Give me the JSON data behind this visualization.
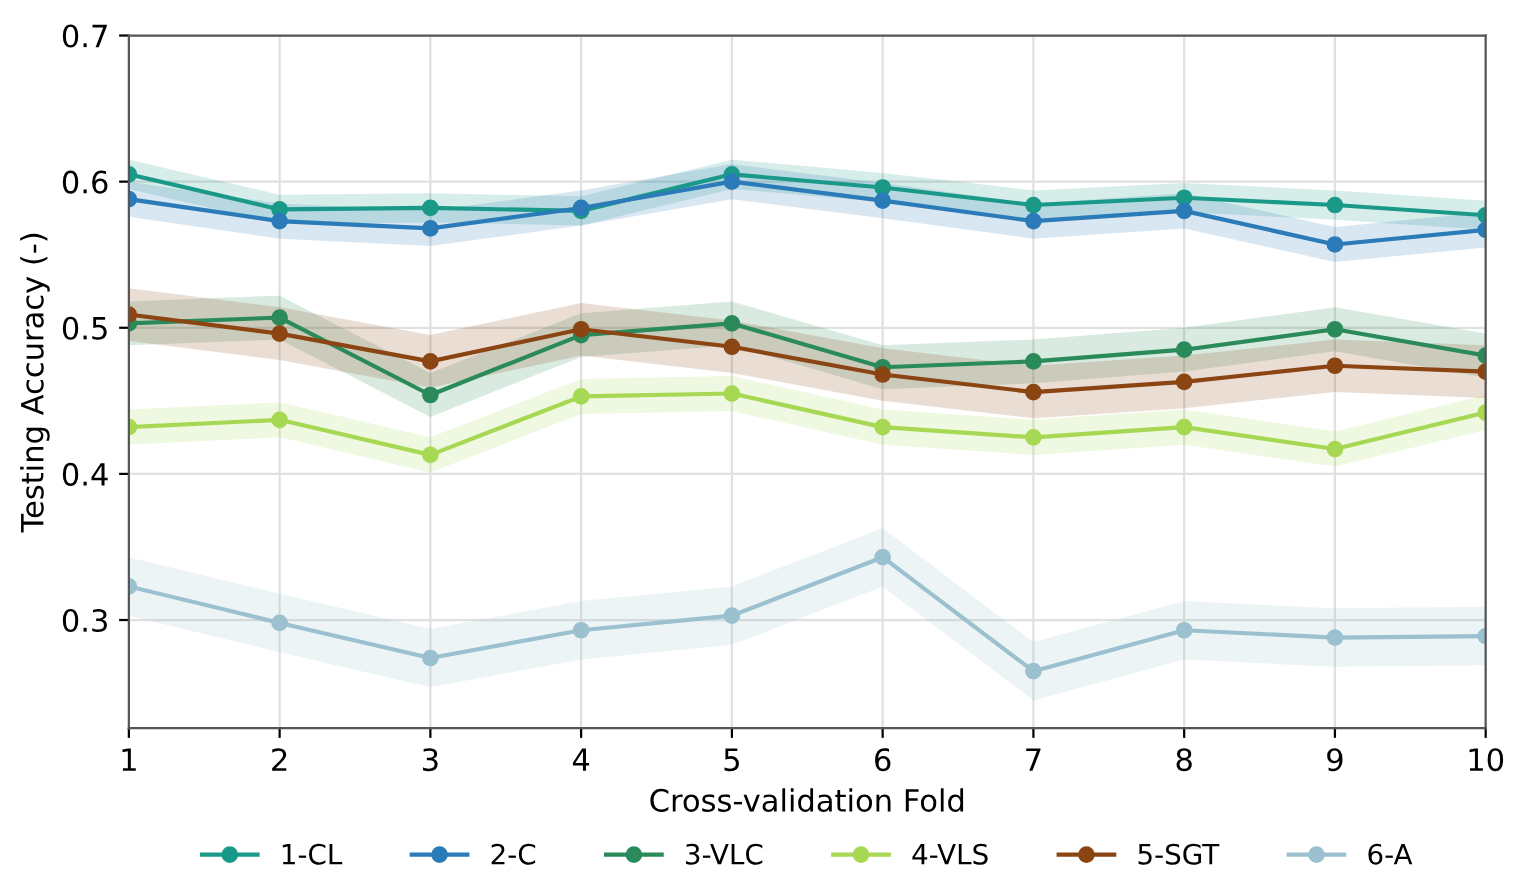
{
  "chart_data": {
    "type": "line",
    "xlabel": "Cross-validation Fold",
    "ylabel": "Testing Accuracy (-)",
    "x": [
      1,
      2,
      3,
      4,
      5,
      6,
      7,
      8,
      9,
      10
    ],
    "xlim": [
      1,
      10
    ],
    "xticks": [
      1,
      2,
      3,
      4,
      5,
      6,
      7,
      8,
      9,
      10
    ],
    "ylim": [
      0.226,
      0.7
    ],
    "yticks": [
      0.3,
      0.4,
      0.5,
      0.6,
      0.7
    ],
    "grid": true,
    "legend": "bottom",
    "marker": "circle",
    "line_style": "solid",
    "series": [
      {
        "name": "1-CL",
        "color": "#1a9988",
        "values": [
          0.605,
          0.581,
          0.582,
          0.58,
          0.605,
          0.596,
          0.584,
          0.589,
          0.584,
          0.577
        ],
        "lower": [
          0.595,
          0.571,
          0.572,
          0.57,
          0.595,
          0.586,
          0.574,
          0.579,
          0.574,
          0.567
        ],
        "upper": [
          0.615,
          0.591,
          0.592,
          0.59,
          0.615,
          0.606,
          0.594,
          0.599,
          0.594,
          0.587
        ]
      },
      {
        "name": "2-C",
        "color": "#2a7bb8",
        "values": [
          0.588,
          0.573,
          0.568,
          0.582,
          0.6,
          0.587,
          0.573,
          0.58,
          0.557,
          0.567
        ],
        "lower": [
          0.576,
          0.561,
          0.556,
          0.57,
          0.588,
          0.575,
          0.561,
          0.568,
          0.545,
          0.555
        ],
        "upper": [
          0.6,
          0.585,
          0.58,
          0.594,
          0.612,
          0.599,
          0.585,
          0.592,
          0.569,
          0.579
        ]
      },
      {
        "name": "3-VLC",
        "color": "#2a8a5a",
        "values": [
          0.503,
          0.507,
          0.454,
          0.495,
          0.503,
          0.473,
          0.477,
          0.485,
          0.499,
          0.481
        ],
        "lower": [
          0.488,
          0.492,
          0.439,
          0.48,
          0.488,
          0.458,
          0.462,
          0.47,
          0.484,
          0.466
        ],
        "upper": [
          0.518,
          0.522,
          0.469,
          0.51,
          0.518,
          0.488,
          0.492,
          0.5,
          0.514,
          0.496
        ]
      },
      {
        "name": "4-VLS",
        "color": "#a6d854",
        "values": [
          0.432,
          0.437,
          0.413,
          0.453,
          0.455,
          0.432,
          0.425,
          0.432,
          0.417,
          0.442
        ],
        "lower": [
          0.42,
          0.425,
          0.401,
          0.441,
          0.443,
          0.42,
          0.413,
          0.42,
          0.405,
          0.43
        ],
        "upper": [
          0.444,
          0.449,
          0.425,
          0.465,
          0.467,
          0.444,
          0.437,
          0.444,
          0.429,
          0.454
        ]
      },
      {
        "name": "5-SGT",
        "color": "#8b4513",
        "values": [
          0.509,
          0.496,
          0.477,
          0.499,
          0.487,
          0.468,
          0.456,
          0.463,
          0.474,
          0.47
        ],
        "lower": [
          0.491,
          0.478,
          0.459,
          0.481,
          0.469,
          0.45,
          0.438,
          0.445,
          0.456,
          0.452
        ],
        "upper": [
          0.527,
          0.514,
          0.495,
          0.517,
          0.505,
          0.486,
          0.474,
          0.481,
          0.492,
          0.488
        ]
      },
      {
        "name": "6-A",
        "color": "#9bc0cf",
        "values": [
          0.323,
          0.298,
          0.274,
          0.293,
          0.303,
          0.343,
          0.265,
          0.293,
          0.288,
          0.289
        ],
        "lower": [
          0.303,
          0.278,
          0.254,
          0.273,
          0.283,
          0.323,
          0.245,
          0.273,
          0.268,
          0.269
        ],
        "upper": [
          0.343,
          0.318,
          0.294,
          0.313,
          0.323,
          0.363,
          0.285,
          0.313,
          0.308,
          0.309
        ]
      }
    ]
  }
}
